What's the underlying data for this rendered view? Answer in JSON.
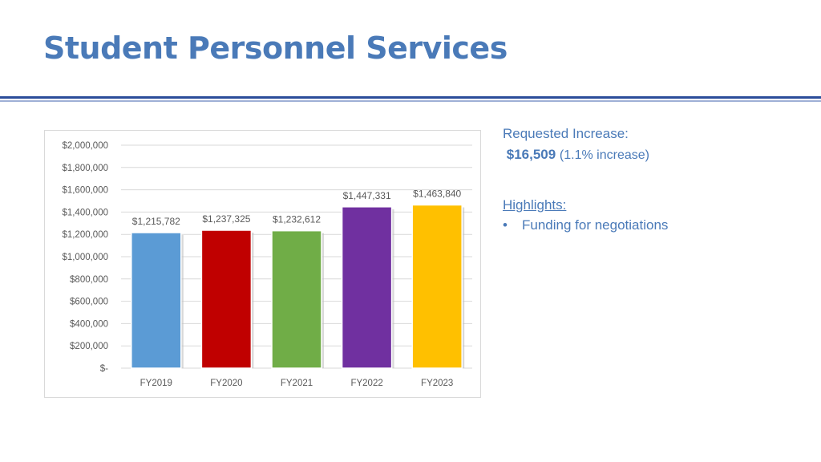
{
  "slide": {
    "title": "Student Personnel Services"
  },
  "sidebar": {
    "requested_label": "Requested Increase:",
    "amount": "$16,509",
    "percent": "(1.1% increase)",
    "highlights_label": "Highlights:",
    "bullets": [
      "Funding for negotiations"
    ]
  },
  "chart_data": {
    "type": "bar",
    "categories": [
      "FY2019",
      "FY2020",
      "FY2021",
      "FY2022",
      "FY2023"
    ],
    "values": [
      1215782,
      1237325,
      1232612,
      1447331,
      1463840
    ],
    "data_labels": [
      "$1,215,782",
      "$1,237,325",
      "$1,232,612",
      "$1,447,331",
      "$1,463,840"
    ],
    "ylim": [
      0,
      2000000
    ],
    "yticks": [
      "$-",
      "$200,000",
      "$400,000",
      "$600,000",
      "$800,000",
      "$1,000,000",
      "$1,200,000",
      "$1,400,000",
      "$1,600,000",
      "$1,800,000",
      "$2,000,000"
    ],
    "colors": [
      "#5b9bd5",
      "#c00000",
      "#70ad47",
      "#7030a0",
      "#ffc000"
    ],
    "grid": true,
    "title": "",
    "xlabel": "",
    "ylabel": ""
  }
}
